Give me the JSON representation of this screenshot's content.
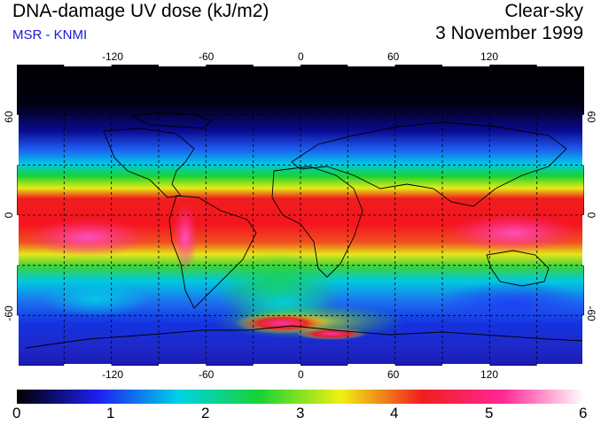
{
  "header": {
    "title": "DNA-damage UV dose (kJ/m2)",
    "subtitle": "MSR - KNMI",
    "condition": "Clear-sky",
    "date": "3 November 1999"
  },
  "map": {
    "projection": "equirectangular",
    "lon_range": [
      -180,
      180
    ],
    "lat_range": [
      -90,
      90
    ],
    "lon_ticks": [
      "-120",
      "-60",
      "0",
      "60",
      "120"
    ],
    "lat_ticks": [
      "60",
      "0",
      "-60"
    ],
    "gridlines": "dashed every 30 degrees",
    "coastlines": true
  },
  "colorbar": {
    "min": 0,
    "max": 6,
    "labels": [
      "0",
      "1",
      "2",
      "3",
      "4",
      "5",
      "6"
    ],
    "colors": [
      "#000000",
      "#1e1ef0",
      "#00d2e6",
      "#19d232",
      "#f0f014",
      "#f01e1e",
      "#ff2896",
      "#ffffff"
    ]
  }
}
